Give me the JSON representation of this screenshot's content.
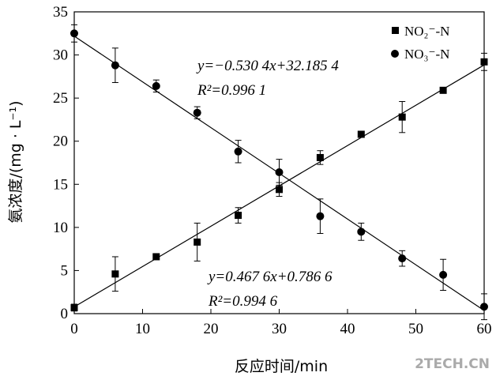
{
  "chart_data": {
    "type": "scatter",
    "xlabel": "反应时间/min",
    "ylabel": "氨浓度/(mg · L⁻¹)",
    "xlim": [
      0,
      60
    ],
    "ylim": [
      0,
      35
    ],
    "xticks": [
      0,
      10,
      20,
      30,
      40,
      50,
      60
    ],
    "yticks": [
      0,
      5,
      10,
      15,
      20,
      25,
      30,
      35
    ],
    "legend_position": "top-right",
    "series": [
      {
        "name": "NO₂⁻-N",
        "marker": "square",
        "color": "#000000",
        "x": [
          0,
          6,
          12,
          18,
          24,
          30,
          36,
          42,
          48,
          54,
          60
        ],
        "y": [
          0.7,
          4.6,
          6.6,
          8.3,
          11.4,
          14.4,
          18.1,
          20.8,
          22.8,
          25.9,
          29.2
        ],
        "err": [
          0.4,
          2.0,
          0.3,
          2.2,
          0.9,
          0.8,
          0.8,
          0.3,
          1.8,
          0.3,
          1.0
        ],
        "fit": {
          "slope": 0.4676,
          "intercept": 0.7866
        },
        "equation": "y=0.467 6x+0.786 6",
        "r2": "R²=0.994 6"
      },
      {
        "name": "NO₃⁻-N",
        "marker": "circle",
        "color": "#000000",
        "x": [
          0,
          6,
          12,
          18,
          24,
          30,
          36,
          42,
          48,
          54,
          60
        ],
        "y": [
          32.5,
          28.8,
          26.4,
          23.3,
          18.8,
          16.4,
          11.3,
          9.5,
          6.4,
          4.5,
          0.8
        ],
        "err": [
          1.0,
          2.0,
          0.7,
          0.7,
          1.3,
          1.5,
          2.0,
          1.0,
          0.9,
          1.8,
          1.5
        ],
        "fit": {
          "slope": -0.5304,
          "intercept": 32.1854
        },
        "equation": "y=−0.530 4x+32.185 4",
        "r2": "R²=0.996 1"
      }
    ],
    "watermark": "2TECH.CN"
  }
}
